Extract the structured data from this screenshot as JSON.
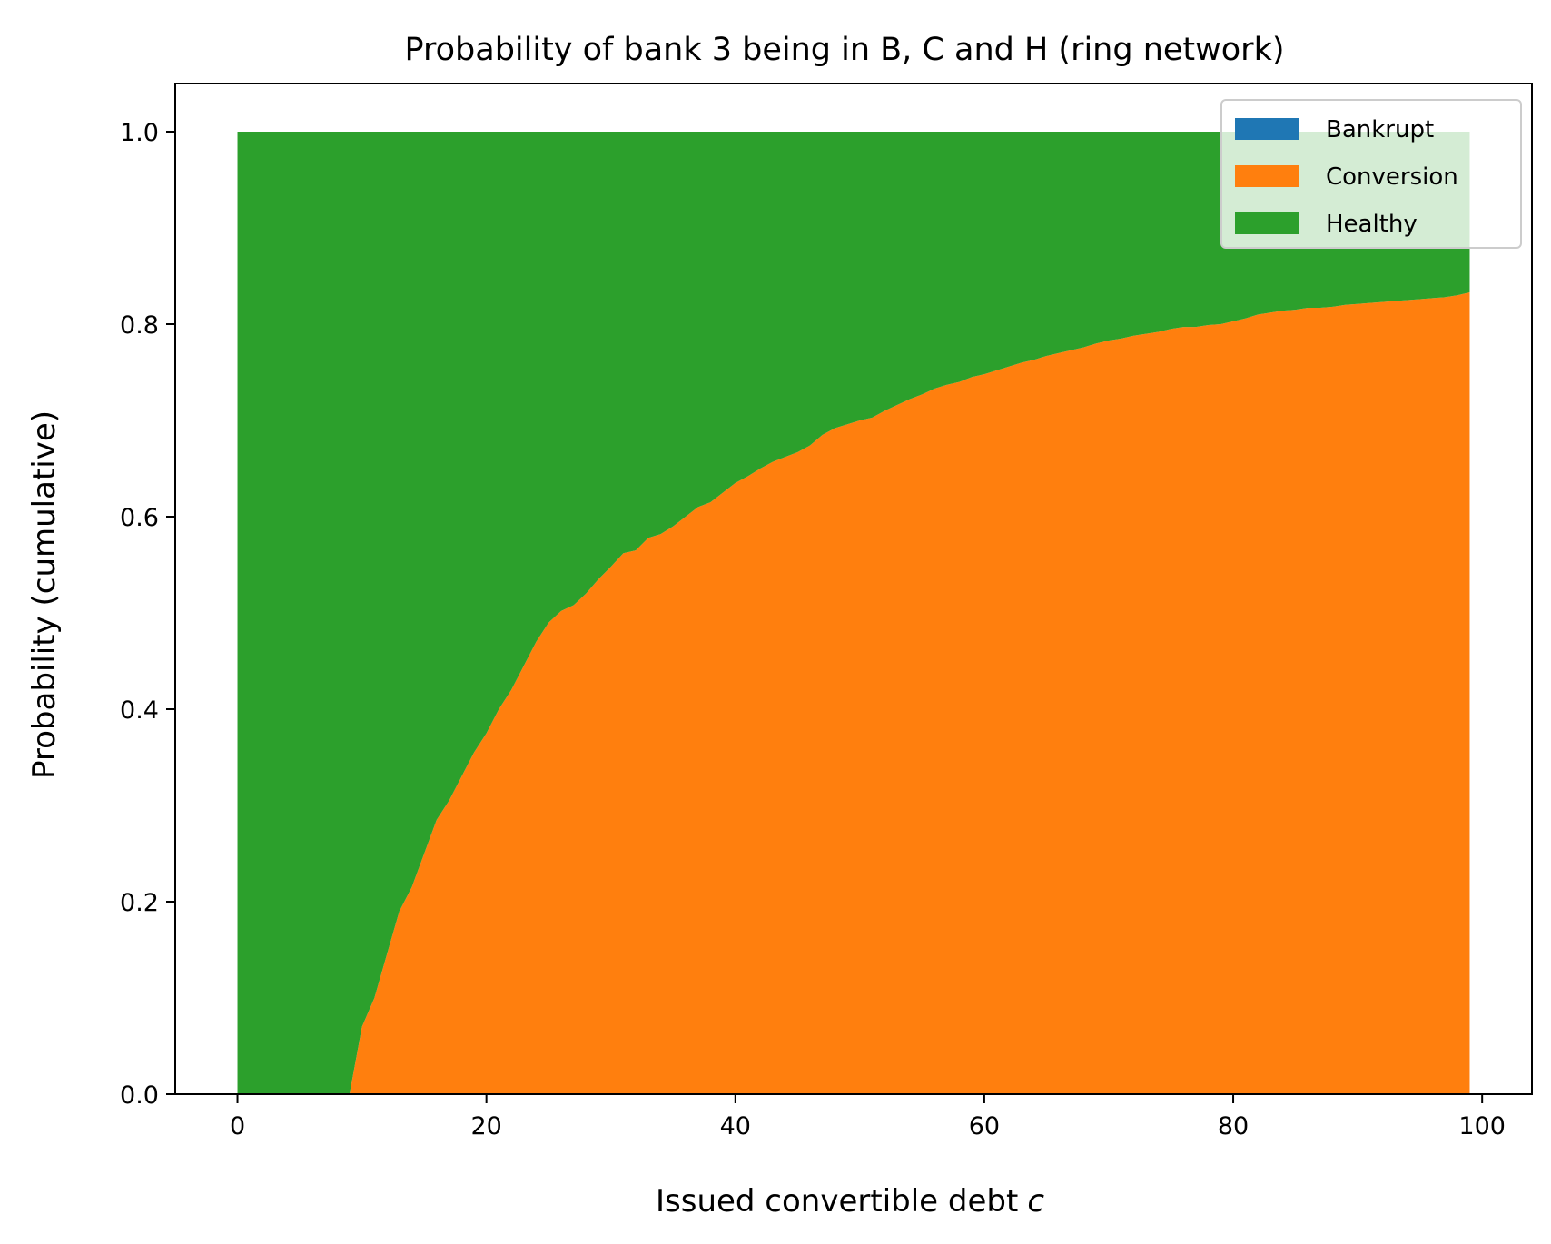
{
  "chart_data": {
    "type": "area",
    "stacked": true,
    "title": "Probability of bank 3 being in B, C and H (ring network)",
    "xlabel": "Issued convertible debt",
    "xlabel_var": "c",
    "ylabel": "Probability (cumulative)",
    "xlim": [
      -5,
      104
    ],
    "ylim": [
      0.0,
      1.05
    ],
    "xticks": [
      0,
      20,
      40,
      60,
      80,
      100
    ],
    "xtick_labels": [
      "0",
      "20",
      "40",
      "60",
      "80",
      "100"
    ],
    "yticks": [
      0.0,
      0.2,
      0.4,
      0.6,
      0.8,
      1.0
    ],
    "ytick_labels": [
      "0.0",
      "0.2",
      "0.4",
      "0.6",
      "0.8",
      "1.0"
    ],
    "grid": false,
    "legend_position": "top-right",
    "x": [
      0,
      5,
      9,
      10,
      11,
      12,
      13,
      14,
      15,
      16,
      17,
      18,
      19,
      20,
      21,
      22,
      23,
      24,
      25,
      26,
      27,
      28,
      29,
      30,
      31,
      32,
      33,
      34,
      35,
      36,
      37,
      38,
      39,
      40,
      41,
      42,
      43,
      44,
      45,
      46,
      47,
      48,
      49,
      50,
      51,
      52,
      53,
      54,
      55,
      56,
      57,
      58,
      59,
      60,
      61,
      62,
      63,
      64,
      65,
      66,
      67,
      68,
      69,
      70,
      71,
      72,
      73,
      74,
      75,
      76,
      77,
      78,
      79,
      80,
      81,
      82,
      83,
      84,
      85,
      86,
      87,
      88,
      89,
      90,
      91,
      92,
      93,
      94,
      95,
      96,
      97,
      98,
      99
    ],
    "series": [
      {
        "name": "Bankrupt",
        "color": "#1f77b4",
        "values": [
          0,
          0,
          0,
          0,
          0,
          0,
          0,
          0,
          0,
          0,
          0,
          0,
          0,
          0,
          0,
          0,
          0,
          0,
          0,
          0,
          0,
          0,
          0,
          0,
          0,
          0,
          0,
          0,
          0,
          0,
          0,
          0,
          0,
          0,
          0,
          0,
          0,
          0,
          0,
          0,
          0,
          0,
          0,
          0,
          0,
          0,
          0,
          0,
          0,
          0,
          0,
          0,
          0,
          0,
          0,
          0,
          0,
          0,
          0,
          0,
          0,
          0,
          0,
          0,
          0,
          0,
          0,
          0,
          0,
          0,
          0,
          0,
          0,
          0,
          0,
          0,
          0,
          0,
          0,
          0,
          0,
          0,
          0,
          0,
          0,
          0,
          0,
          0,
          0,
          0,
          0,
          0,
          0
        ]
      },
      {
        "name": "Conversion",
        "color": "#ff7f0e",
        "values": [
          0,
          0,
          0,
          0.07,
          0.1,
          0.145,
          0.19,
          0.215,
          0.25,
          0.285,
          0.305,
          0.33,
          0.355,
          0.375,
          0.4,
          0.42,
          0.445,
          0.47,
          0.49,
          0.502,
          0.508,
          0.52,
          0.535,
          0.548,
          0.562,
          0.565,
          0.578,
          0.582,
          0.59,
          0.6,
          0.61,
          0.615,
          0.625,
          0.635,
          0.642,
          0.65,
          0.657,
          0.662,
          0.667,
          0.674,
          0.685,
          0.692,
          0.696,
          0.7,
          0.703,
          0.71,
          0.716,
          0.722,
          0.727,
          0.733,
          0.737,
          0.74,
          0.745,
          0.748,
          0.752,
          0.756,
          0.76,
          0.763,
          0.767,
          0.77,
          0.773,
          0.776,
          0.78,
          0.783,
          0.785,
          0.788,
          0.79,
          0.792,
          0.795,
          0.797,
          0.797,
          0.799,
          0.8,
          0.803,
          0.806,
          0.81,
          0.812,
          0.814,
          0.815,
          0.817,
          0.817,
          0.818,
          0.82,
          0.821,
          0.822,
          0.823,
          0.824,
          0.825,
          0.826,
          0.827,
          0.828,
          0.83,
          0.833
        ]
      },
      {
        "name": "Healthy",
        "color": "#2ca02c",
        "values": [
          1,
          1,
          1,
          0.93,
          0.9,
          0.855,
          0.81,
          0.785,
          0.75,
          0.715,
          0.695,
          0.67,
          0.645,
          0.625,
          0.6,
          0.58,
          0.555,
          0.53,
          0.51,
          0.498,
          0.492,
          0.48,
          0.465,
          0.452,
          0.438,
          0.435,
          0.422,
          0.418,
          0.41,
          0.4,
          0.39,
          0.385,
          0.375,
          0.365,
          0.358,
          0.35,
          0.343,
          0.338,
          0.333,
          0.326,
          0.315,
          0.308,
          0.304,
          0.3,
          0.297,
          0.29,
          0.284,
          0.278,
          0.273,
          0.267,
          0.263,
          0.26,
          0.255,
          0.252,
          0.248,
          0.244,
          0.24,
          0.237,
          0.233,
          0.23,
          0.227,
          0.224,
          0.22,
          0.217,
          0.215,
          0.212,
          0.21,
          0.208,
          0.205,
          0.203,
          0.203,
          0.201,
          0.2,
          0.197,
          0.194,
          0.19,
          0.188,
          0.186,
          0.185,
          0.183,
          0.183,
          0.182,
          0.18,
          0.179,
          0.178,
          0.177,
          0.176,
          0.175,
          0.174,
          0.173,
          0.172,
          0.17,
          0.167
        ]
      }
    ]
  }
}
